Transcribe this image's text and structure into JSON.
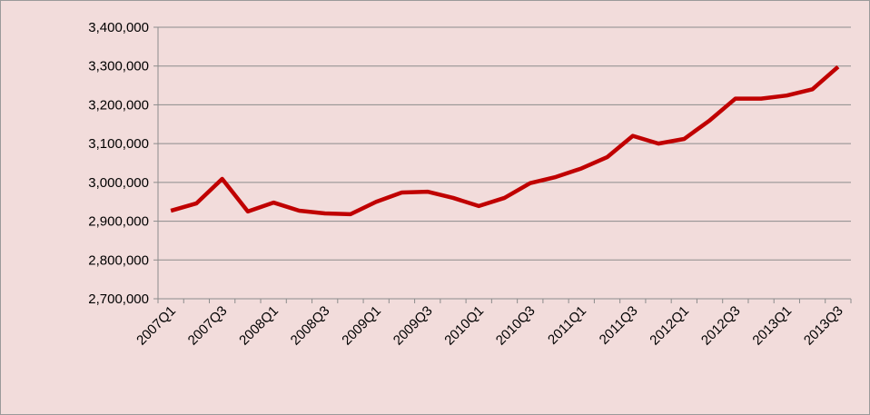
{
  "chart_data": {
    "type": "line",
    "categories": [
      "2007Q1",
      null,
      "2007Q3",
      null,
      "2008Q1",
      null,
      "2008Q3",
      null,
      "2009Q1",
      null,
      "2009Q3",
      null,
      "2010Q1",
      null,
      "2010Q3",
      null,
      "2011Q1",
      null,
      "2011Q3",
      null,
      "2012Q1",
      null,
      "2012Q3",
      null,
      "2013Q1",
      null,
      "2013Q3"
    ],
    "values": [
      2927000,
      2946000,
      3009000,
      2925000,
      2948000,
      2927000,
      2920000,
      2918000,
      2950000,
      2974000,
      2976000,
      2960000,
      2939000,
      2960000,
      2998000,
      3014000,
      3036000,
      3065000,
      3120000,
      3100000,
      3112000,
      3160000,
      3216000,
      3216000,
      3224000,
      3240000,
      3298000
    ],
    "color": "#c00000",
    "ylim": [
      2700000,
      3400000
    ],
    "yticks": [
      {
        "value": 2700000,
        "label": "2,700,000"
      },
      {
        "value": 2800000,
        "label": "2,800,000"
      },
      {
        "value": 2900000,
        "label": "2,900,000"
      },
      {
        "value": 3000000,
        "label": "3,000,000"
      },
      {
        "value": 3100000,
        "label": "3,100,000"
      },
      {
        "value": 3200000,
        "label": "3,200,000"
      },
      {
        "value": 3300000,
        "label": "3,300,000"
      },
      {
        "value": 3400000,
        "label": "3,400,000"
      }
    ],
    "grid": true
  }
}
